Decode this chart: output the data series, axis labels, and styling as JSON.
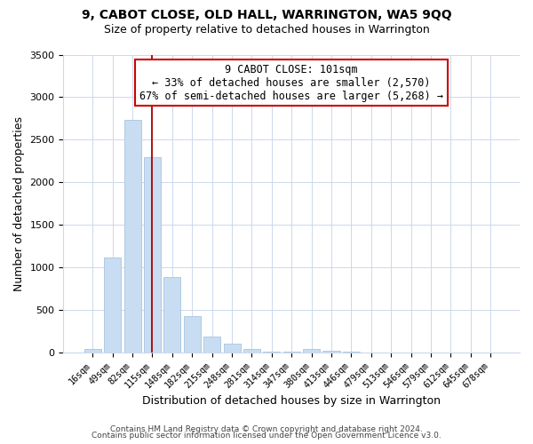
{
  "title1": "9, CABOT CLOSE, OLD HALL, WARRINGTON, WA5 9QQ",
  "title2": "Size of property relative to detached houses in Warrington",
  "xlabel": "Distribution of detached houses by size in Warrington",
  "ylabel": "Number of detached properties",
  "bar_labels": [
    "16sqm",
    "49sqm",
    "82sqm",
    "115sqm",
    "148sqm",
    "182sqm",
    "215sqm",
    "248sqm",
    "281sqm",
    "314sqm",
    "347sqm",
    "380sqm",
    "413sqm",
    "446sqm",
    "479sqm",
    "513sqm",
    "546sqm",
    "579sqm",
    "612sqm",
    "645sqm",
    "678sqm"
  ],
  "bar_values": [
    40,
    1110,
    2730,
    2290,
    880,
    430,
    185,
    100,
    40,
    10,
    5,
    40,
    20,
    5,
    0,
    0,
    0,
    0,
    0,
    0,
    0
  ],
  "bar_color": "#c9ddf2",
  "bar_edge_color": "#a8c4e0",
  "vline_x_bar_idx": 3.0,
  "vline_color": "#aa0000",
  "annotation_title": "9 CABOT CLOSE: 101sqm",
  "annotation_line1": "← 33% of detached houses are smaller (2,570)",
  "annotation_line2": "67% of semi-detached houses are larger (5,268) →",
  "annotation_box_color": "#ffffff",
  "annotation_box_edge": "#cc0000",
  "ylim": [
    0,
    3500
  ],
  "yticks": [
    0,
    500,
    1000,
    1500,
    2000,
    2500,
    3000,
    3500
  ],
  "grid_color": "#ccd8ec",
  "footer1": "Contains HM Land Registry data © Crown copyright and database right 2024.",
  "footer2": "Contains public sector information licensed under the Open Government Licence v3.0."
}
